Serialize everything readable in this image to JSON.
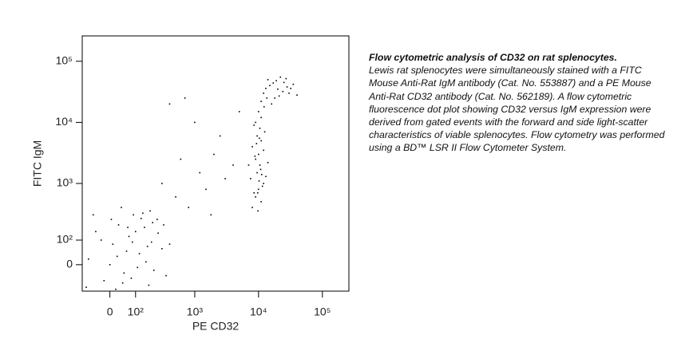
{
  "chart_data": {
    "type": "scatter",
    "xlabel": "PE CD32",
    "ylabel": "FITC IgM",
    "xscale": "biexponential",
    "yscale": "biexponential",
    "xlim": [
      -110,
      260000
    ],
    "ylim": [
      -110,
      260000
    ],
    "xticks": [
      0,
      {
        "value": 100,
        "label": "10²"
      },
      {
        "value": 1000,
        "label": "10³"
      },
      {
        "value": 10000,
        "label": "10⁴"
      },
      {
        "value": 100000,
        "label": "10⁵"
      }
    ],
    "yticks": [
      0,
      {
        "value": 100,
        "label": "10²"
      },
      {
        "value": 1000,
        "label": "10³"
      },
      {
        "value": 10000,
        "label": "10⁴"
      },
      {
        "value": 100000,
        "label": "10⁵"
      }
    ],
    "color": "#000000",
    "x": [
      -80,
      -50,
      -20,
      10,
      30,
      50,
      70,
      90,
      120,
      150,
      180,
      200,
      250,
      300,
      -90,
      -60,
      0,
      20,
      40,
      60,
      80,
      100,
      130,
      160,
      190,
      220,
      260,
      320,
      400,
      -30,
      5,
      25,
      45,
      65,
      85,
      110,
      140,
      170,
      210,
      350,
      500,
      800,
      1200,
      600,
      1500,
      2000,
      3000,
      2500,
      400,
      700,
      1000,
      4000,
      5000,
      300,
      1800,
      8000,
      9000,
      10000,
      11000,
      12000,
      7500,
      9500,
      10500,
      8500,
      11500,
      13000,
      9000,
      10000,
      8000,
      11000,
      9500,
      10500,
      12000,
      7000,
      14000,
      9000,
      11000,
      10000,
      8500,
      12500,
      9800,
      10200,
      10800,
      8800,
      9300,
      11200,
      9700,
      10300,
      12200,
      13500,
      12000,
      15000,
      20000,
      25000,
      18000,
      30000,
      14000,
      22000,
      16000,
      28000,
      35000,
      40000,
      19000,
      24000,
      13000,
      17000,
      21000,
      27000,
      32000,
      11000
    ],
    "y": [
      20,
      150,
      -60,
      80,
      200,
      -30,
      120,
      300,
      40,
      180,
      -80,
      90,
      250,
      60,
      -90,
      300,
      0,
      -100,
      400,
      50,
      -50,
      150,
      260,
      10,
      350,
      -20,
      140,
      200,
      80,
      100,
      250,
      30,
      -70,
      180,
      90,
      -10,
      320,
      70,
      220,
      -40,
      600,
      400,
      1500,
      2500,
      800,
      3000,
      1200,
      6000,
      20000,
      25000,
      10000,
      2000,
      15000,
      1000,
      300,
      400,
      600,
      800,
      500,
      1000,
      1200,
      1500,
      2000,
      700,
      900,
      1300,
      2500,
      3000,
      4000,
      5000,
      6000,
      8000,
      3500,
      2000,
      2200,
      10000,
      12000,
      15000,
      9000,
      7000,
      350,
      1100,
      1700,
      2800,
      4500,
      1400,
      700,
      5500,
      18000,
      25000,
      30000,
      40000,
      35000,
      45000,
      25000,
      30000,
      50000,
      55000,
      20000,
      38000,
      42000,
      28000,
      48000,
      32000,
      36000,
      44000,
      27000,
      52000,
      36000,
      22000
    ]
  },
  "caption": {
    "title": "Flow cytometric analysis of CD32 on rat splenocytes.",
    "body": "Lewis rat splenocytes were simultaneously stained with a FITC Mouse Anti-Rat IgM antibody (Cat. No. 553887) and a PE Mouse Anti-Rat CD32 antibody (Cat. No. 562189). A flow cytometric fluorescence dot plot showing CD32 versus IgM expression were derived from gated events with the forward and side light-scatter characteristics of viable splenocytes. Flow cytometry was performed using a BD™ LSR II Flow Cytometer System."
  }
}
